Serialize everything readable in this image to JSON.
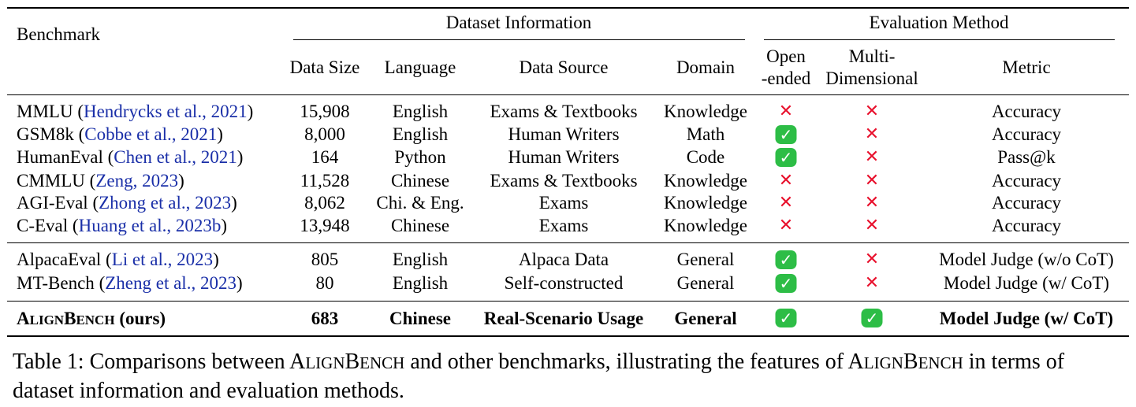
{
  "header": {
    "benchmark": "Benchmark",
    "group_dataset": "Dataset Information",
    "group_eval": "Evaluation Method",
    "col_data_size": "Data Size",
    "col_language": "Language",
    "col_data_source": "Data Source",
    "col_domain": "Domain",
    "col_open_1": "Open",
    "col_open_2": "-ended",
    "col_multi_1": "Multi-",
    "col_multi_2": "Dimensional",
    "col_metric": "Metric"
  },
  "rows": [
    {
      "name": "MMLU",
      "cite": "Hendrycks et al., 2021",
      "size": "15,908",
      "lang": "English",
      "source": "Exams & Textbooks",
      "domain": "Knowledge",
      "open": false,
      "multi": false,
      "metric": "Accuracy"
    },
    {
      "name": "GSM8k",
      "cite": "Cobbe et al., 2021",
      "size": "8,000",
      "lang": "English",
      "source": "Human Writers",
      "domain": "Math",
      "open": true,
      "multi": false,
      "metric": "Accuracy"
    },
    {
      "name": "HumanEval",
      "cite": "Chen et al., 2021",
      "size": "164",
      "lang": "Python",
      "source": "Human Writers",
      "domain": "Code",
      "open": true,
      "multi": false,
      "metric": "Pass@k"
    },
    {
      "name": "CMMLU",
      "cite": "Zeng, 2023",
      "size": "11,528",
      "lang": "Chinese",
      "source": "Exams & Textbooks",
      "domain": "Knowledge",
      "open": false,
      "multi": false,
      "metric": "Accuracy"
    },
    {
      "name": "AGI-Eval",
      "cite": "Zhong et al., 2023",
      "size": "8,062",
      "lang": "Chi. & Eng.",
      "source": "Exams",
      "domain": "Knowledge",
      "open": false,
      "multi": false,
      "metric": "Accuracy"
    },
    {
      "name": "C-Eval",
      "cite": "Huang et al., 2023b",
      "size": "13,948",
      "lang": "Chinese",
      "source": "Exams",
      "domain": "Knowledge",
      "open": false,
      "multi": false,
      "metric": "Accuracy"
    },
    {
      "name": "AlpacaEval",
      "cite": "Li et al., 2023",
      "size": "805",
      "lang": "English",
      "source": "Alpaca Data",
      "domain": "General",
      "open": true,
      "multi": false,
      "metric": "Model Judge (w/o CoT)"
    },
    {
      "name": "MT-Bench",
      "cite": "Zheng et al., 2023",
      "size": "80",
      "lang": "English",
      "source": "Self-constructed",
      "domain": "General",
      "open": true,
      "multi": false,
      "metric": "Model Judge (w/ CoT)"
    }
  ],
  "ours": {
    "name_parts": [
      "A",
      "LIGN",
      "B",
      "ENCH"
    ],
    "suffix": " (ours)",
    "size": "683",
    "lang": "Chinese",
    "source": "Real-Scenario Usage",
    "domain": "General",
    "open": true,
    "multi": true,
    "metric": "Model Judge (w/ CoT)"
  },
  "caption": {
    "prefix": "Table 1: Comparisons between ",
    "name_parts": [
      "A",
      "LIGN",
      "B",
      "ENCH"
    ],
    "middle": " and other benchmarks, illustrating the features of ",
    "suffix": " in terms of dataset information and evaluation methods."
  },
  "icons": {
    "yes": "check-icon",
    "no": "cross-icon"
  },
  "colors": {
    "citation": "#1a2fa8",
    "cross": "#e8112d",
    "check": "#2dbd46"
  }
}
